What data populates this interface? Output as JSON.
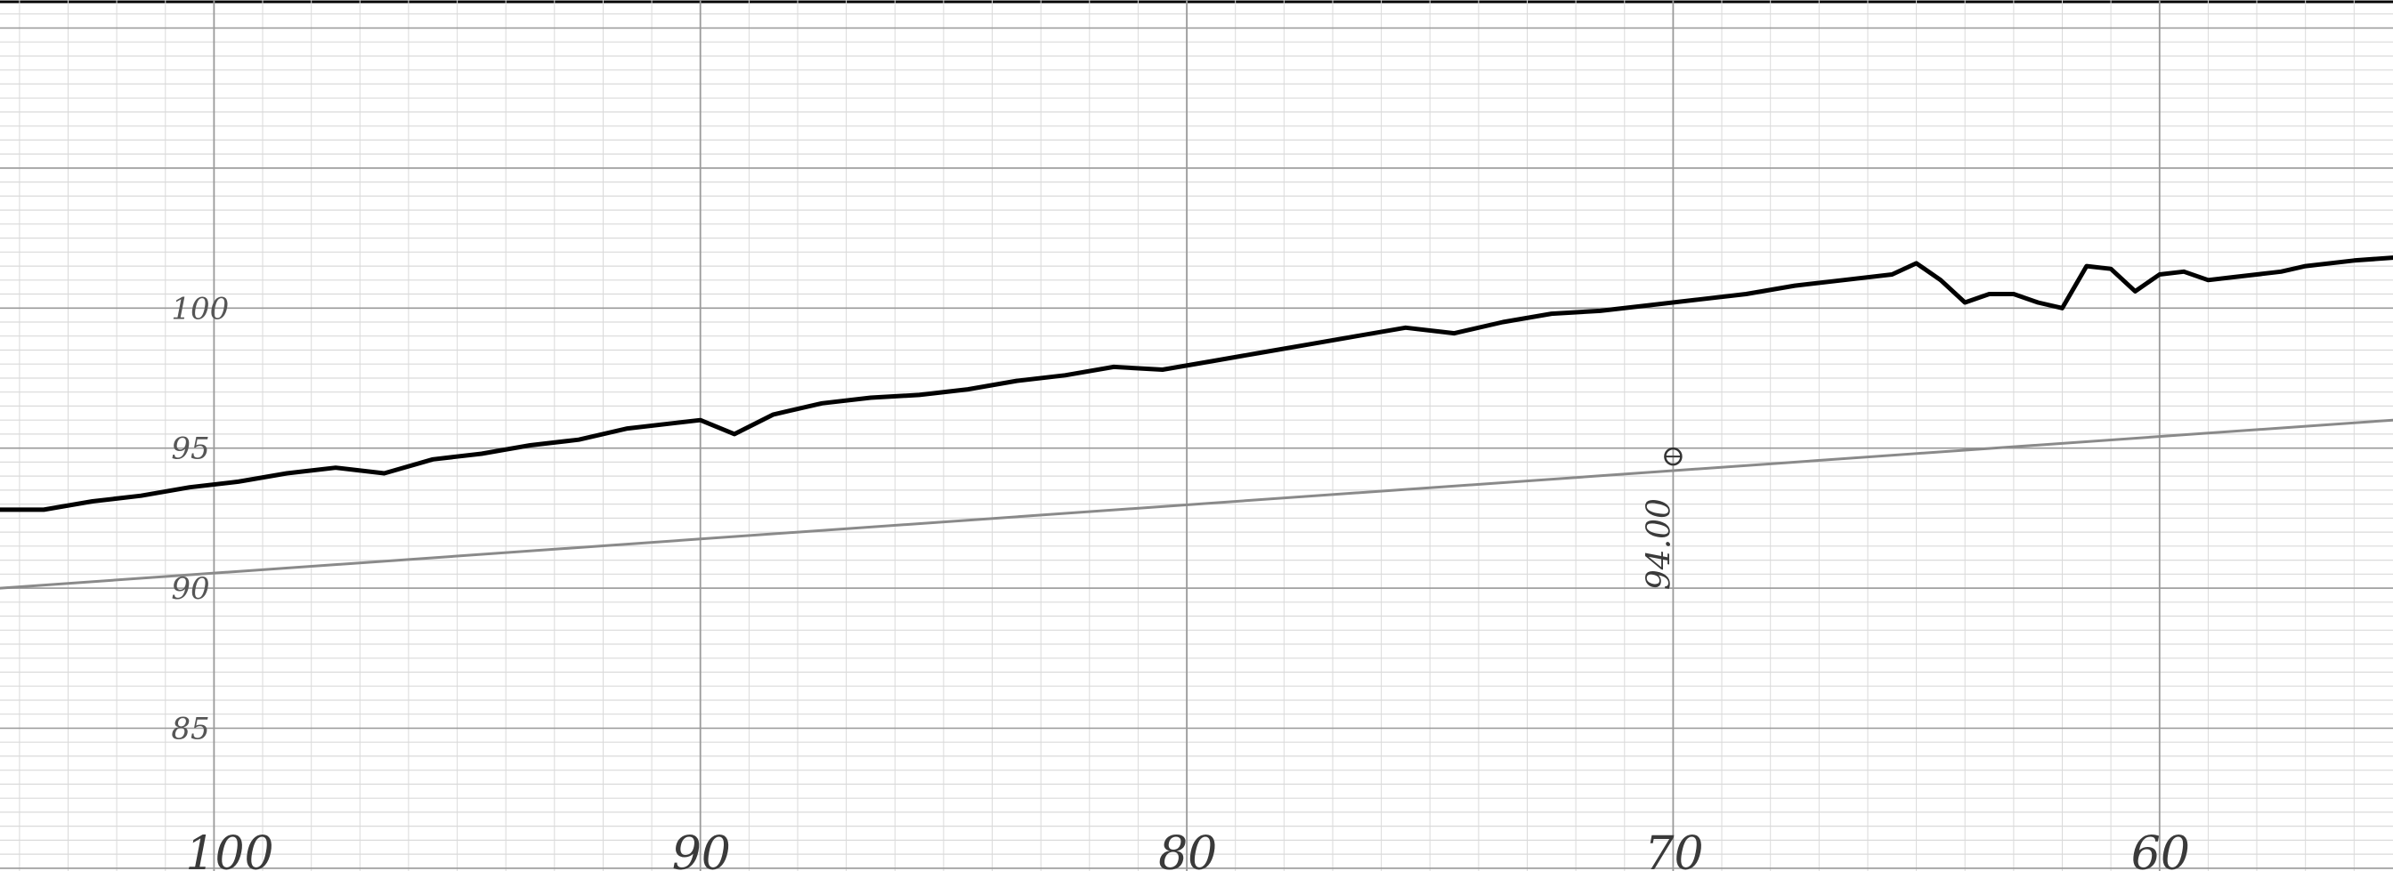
{
  "chart_data": {
    "type": "line",
    "title": "",
    "xlabel": "",
    "ylabel": "",
    "x_direction": "descending",
    "xlim": [
      104.4,
      55.2
    ],
    "ylim": [
      79.9,
      111.0
    ],
    "x_ticks": [
      100,
      90,
      80,
      70,
      60
    ],
    "x_tick_labels": [
      "100",
      "90",
      "80",
      "70",
      "60"
    ],
    "y_ticks": [
      100,
      95,
      90,
      85
    ],
    "y_tick_labels": [
      "100",
      "95",
      "90",
      "85"
    ],
    "grid": true,
    "series": [
      {
        "role": "profile",
        "x": [
          104.4,
          103.5,
          102.5,
          101.5,
          100.5,
          99.5,
          98.5,
          97.5,
          96.5,
          95.5,
          94.5,
          93.5,
          92.5,
          91.5,
          90.5,
          90.0,
          89.3,
          88.5,
          87.5,
          86.5,
          85.5,
          84.5,
          83.5,
          82.5,
          81.5,
          80.5,
          79.5,
          78.5,
          77.5,
          76.5,
          75.5,
          74.5,
          73.5,
          72.5,
          71.5,
          70.5,
          69.5,
          68.5,
          67.5,
          66.5,
          65.5,
          65.0,
          64.5,
          64.0,
          63.5,
          63.0,
          62.5,
          62.0,
          61.5,
          61.0,
          60.5,
          60.0,
          59.5,
          59.0,
          58.5,
          58.0,
          57.5,
          57.0,
          56.0,
          55.2
        ],
        "y": [
          92.8,
          92.8,
          93.1,
          93.3,
          93.6,
          93.8,
          94.1,
          94.3,
          94.1,
          94.6,
          94.8,
          95.1,
          95.3,
          95.7,
          95.9,
          96.0,
          95.5,
          96.2,
          96.6,
          96.8,
          96.9,
          97.1,
          97.4,
          97.6,
          97.9,
          97.8,
          98.1,
          98.4,
          98.7,
          99.0,
          99.3,
          99.1,
          99.5,
          99.8,
          99.9,
          100.1,
          100.3,
          100.5,
          100.8,
          101.0,
          101.2,
          101.6,
          101.0,
          100.2,
          100.5,
          100.5,
          100.2,
          100.0,
          101.5,
          101.4,
          100.6,
          101.2,
          101.3,
          101.0,
          101.1,
          101.2,
          101.3,
          101.5,
          101.7,
          101.8
        ]
      },
      {
        "role": "reference",
        "x": [
          104.4,
          55.2
        ],
        "y": [
          90.0,
          96.0
        ]
      }
    ],
    "annotations": [
      {
        "text": "94.00",
        "x": 70,
        "y": 94.7,
        "marker": "circle-cross"
      }
    ]
  },
  "colors": {
    "paper": "#ffffff",
    "grid_major": "#9a9a9a",
    "grid_minor": "#dadada",
    "profile_line": "#000000",
    "reference_line": "#8a8a8a",
    "ink": "#555555"
  }
}
